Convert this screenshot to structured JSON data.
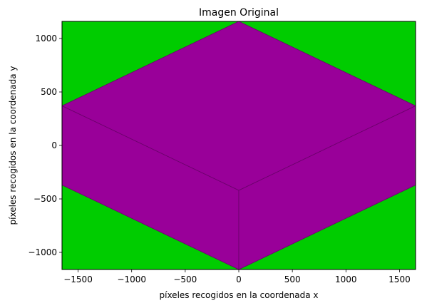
{
  "chart_data": {
    "type": "image",
    "title": "Imagen Original",
    "xlabel": "píxeles recogidos en la coordenada x",
    "ylabel": "píxeles recogidos en la coordenada y",
    "xlim": [
      -1650,
      1650
    ],
    "ylim": [
      -1160,
      1160
    ],
    "xticks": [
      -1500,
      -1000,
      -500,
      0,
      500,
      1000,
      1500
    ],
    "xtick_labels": [
      "−1500",
      "−1000",
      "−500",
      "0",
      "500",
      "1000",
      "1500"
    ],
    "yticks": [
      -1000,
      -500,
      0,
      500,
      1000
    ],
    "ytick_labels": [
      "−1000",
      "−500",
      "0",
      "500",
      "1000"
    ],
    "grid": false,
    "colors": {
      "background": "#00cc00",
      "shape": "#990099",
      "edges": "#6a006a"
    },
    "regions": [
      {
        "name": "top-face",
        "color": "#990099",
        "points": [
          [
            -1650,
            370
          ],
          [
            0,
            1160
          ],
          [
            1650,
            370
          ],
          [
            0,
            -420
          ]
        ]
      },
      {
        "name": "left-face",
        "color": "#990099",
        "points": [
          [
            -1650,
            370
          ],
          [
            0,
            -420
          ],
          [
            0,
            -1160
          ],
          [
            -1650,
            -370
          ]
        ]
      },
      {
        "name": "right-face",
        "color": "#990099",
        "points": [
          [
            1650,
            370
          ],
          [
            0,
            -420
          ],
          [
            0,
            -1160
          ],
          [
            1650,
            -370
          ]
        ]
      }
    ]
  }
}
